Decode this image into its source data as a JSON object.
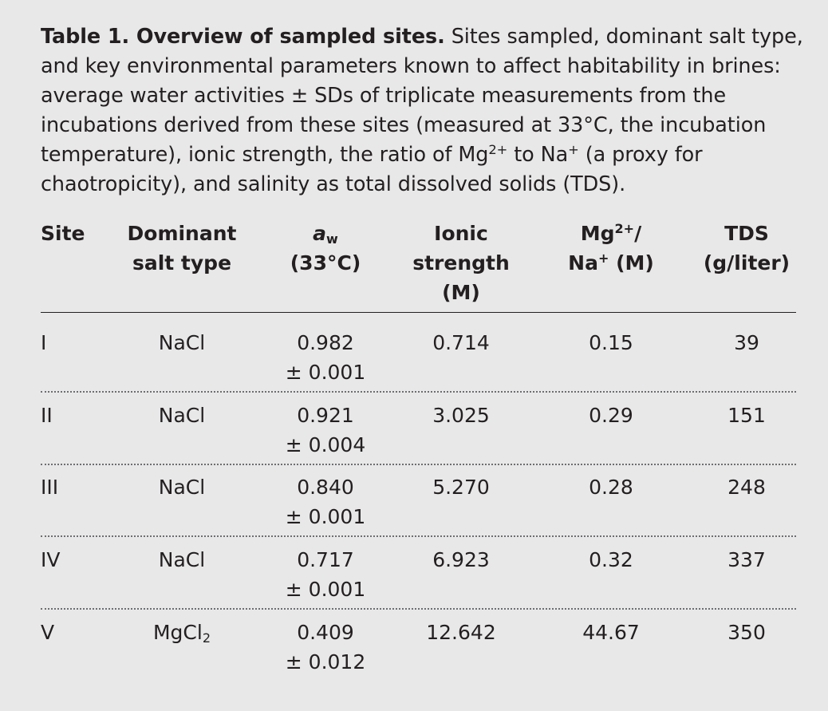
{
  "caption": {
    "title": "Table 1. Overview of sampled sites.",
    "body_part1": "Sites sampled, dominant salt type, and key environmental parameters known to affect habitability in brines: average water activities ± SDs of triplicate measurements from the incubations derived from these sites (measured at 33°C, the incubation temperature), ionic strength, the ratio of Mg",
    "mg_charge": "2+",
    "body_part2": " to Na",
    "na_charge": "+",
    "body_part3": " (a proxy for chaotropicity), and salinity as total dissolved solids (TDS)."
  },
  "headers": {
    "site": "Site",
    "salt_line1": "Dominant",
    "salt_line2": "salt type",
    "aw_symbol": "a",
    "aw_sub": "w",
    "aw_line2": "(33°C)",
    "ionic_line1": "Ionic",
    "ionic_line2": "strength",
    "ionic_line3": "(M)",
    "ratio_mg": "Mg",
    "ratio_mg_charge": "2+",
    "ratio_slash": "/",
    "ratio_na": "Na",
    "ratio_na_charge": "+",
    "ratio_unit": " (M)",
    "tds_line1": "TDS",
    "tds_line2": "(g/liter)"
  },
  "rows": [
    {
      "site": "I",
      "salt": "NaCl",
      "salt_sub": "",
      "aw": "0.982",
      "aw_sd": "± 0.001",
      "ionic": "0.714",
      "ratio": "0.15",
      "tds": "39"
    },
    {
      "site": "II",
      "salt": "NaCl",
      "salt_sub": "",
      "aw": "0.921",
      "aw_sd": "± 0.004",
      "ionic": "3.025",
      "ratio": "0.29",
      "tds": "151"
    },
    {
      "site": "III",
      "salt": "NaCl",
      "salt_sub": "",
      "aw": "0.840",
      "aw_sd": "± 0.001",
      "ionic": "5.270",
      "ratio": "0.28",
      "tds": "248"
    },
    {
      "site": "IV",
      "salt": "NaCl",
      "salt_sub": "",
      "aw": "0.717",
      "aw_sd": "± 0.001",
      "ionic": "6.923",
      "ratio": "0.32",
      "tds": "337"
    },
    {
      "site": "V",
      "salt": "MgCl",
      "salt_sub": "2",
      "aw": "0.409",
      "aw_sd": "± 0.012",
      "ionic": "12.642",
      "ratio": "44.67",
      "tds": "350"
    }
  ]
}
